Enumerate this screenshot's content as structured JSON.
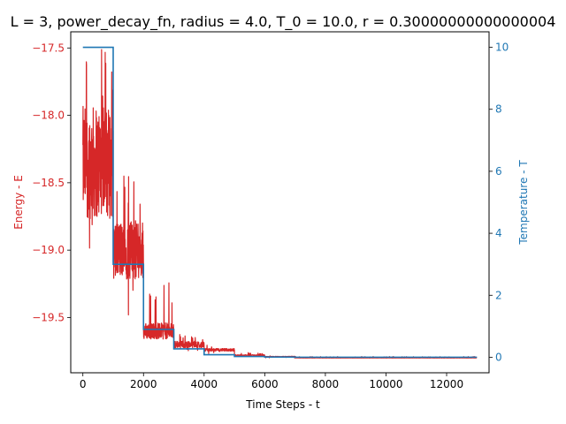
{
  "chart_data": {
    "type": "line",
    "title": "L = 3, power_decay_fn, radius = 4.0, T_0 = 10.0, r = 0.30000000000000004",
    "xlabel": "Time Steps - t",
    "ylabel_left": "Energy - E",
    "ylabel_right": "Temperature - T",
    "xlim": [
      -400,
      13400
    ],
    "ylim_left": [
      -19.91,
      -17.38
    ],
    "ylim_right": [
      -0.5,
      10.5
    ],
    "x_ticks": [
      0,
      2000,
      4000,
      6000,
      8000,
      10000,
      12000
    ],
    "x_tick_labels": [
      "0",
      "2000",
      "4000",
      "6000",
      "8000",
      "10000",
      "12000"
    ],
    "y_left_ticks": [
      -17.5,
      -18.0,
      -18.5,
      -19.0,
      -19.5
    ],
    "y_left_tick_labels": [
      "−17.5",
      "−18.0",
      "−18.5",
      "−19.0",
      "−19.5"
    ],
    "y_right_ticks": [
      0,
      2,
      4,
      6,
      8,
      10
    ],
    "y_right_tick_labels": [
      "0",
      "2",
      "4",
      "6",
      "8",
      "10"
    ],
    "colors": {
      "energy": "#d62728",
      "temperature": "#1f77b4",
      "text": "#000000"
    },
    "grid": false,
    "series": [
      {
        "axis": "left",
        "color": "#d62728",
        "stages": [
          {
            "t_start": 0,
            "t_end": 1000,
            "center": -18.35,
            "amplitude": 0.42,
            "min": -19.18,
            "max": -17.45
          },
          {
            "t_start": 1000,
            "t_end": 2000,
            "center": -19.0,
            "amplitude": 0.22,
            "min": -19.52,
            "max": -18.45
          },
          {
            "t_start": 2000,
            "t_end": 3000,
            "center": -19.6,
            "amplitude": 0.06,
            "min": -19.71,
            "max": -19.24
          },
          {
            "t_start": 3000,
            "t_end": 4000,
            "center": -19.7,
            "amplitude": 0.025,
            "min": -19.75,
            "max": -19.62
          },
          {
            "t_start": 4000,
            "t_end": 5000,
            "center": -19.74,
            "amplitude": 0.01,
            "min": -19.77,
            "max": -19.7
          },
          {
            "t_start": 5000,
            "t_end": 6000,
            "center": -19.78,
            "amplitude": 0.004,
            "min": -19.79,
            "max": -19.76
          },
          {
            "t_start": 6000,
            "t_end": 7000,
            "center": -19.79,
            "amplitude": 0.002,
            "min": -19.8,
            "max": -19.78
          },
          {
            "t_start": 7000,
            "t_end": 13000,
            "center": -19.8,
            "amplitude": 0.001,
            "min": -19.8,
            "max": -19.79
          }
        ]
      },
      {
        "axis": "right",
        "color": "#1f77b4",
        "x": [
          0,
          1000,
          1000,
          2000,
          2000,
          3000,
          3000,
          4000,
          4000,
          5000,
          5000,
          6000,
          6000,
          7000,
          7000,
          13000
        ],
        "y": [
          10,
          10,
          3.0,
          3.0,
          0.9,
          0.9,
          0.27,
          0.27,
          0.081,
          0.081,
          0.024,
          0.024,
          0.0073,
          0.0073,
          0.002,
          0.002
        ]
      }
    ]
  }
}
